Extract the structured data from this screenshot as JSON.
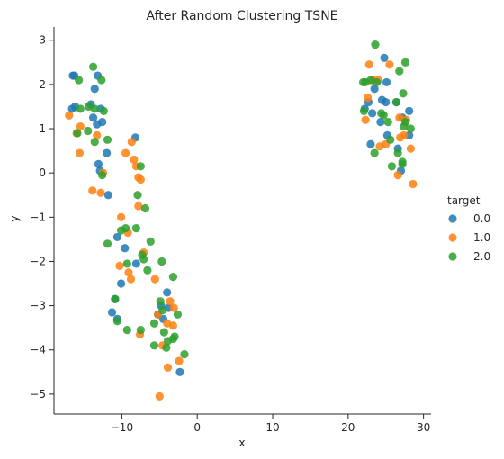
{
  "chart_data": {
    "type": "scatter",
    "title": "After Random Clustering TSNE",
    "xlabel": "x",
    "ylabel": "y",
    "xlim": [
      -19,
      31
    ],
    "ylim": [
      -5.45,
      3.3
    ],
    "xticks": [
      -10,
      0,
      10,
      20,
      30
    ],
    "yticks": [
      -5,
      -4,
      -3,
      -2,
      -1,
      0,
      1,
      2,
      3
    ],
    "xtick_labels": [
      "−10",
      "0",
      "10",
      "20",
      "30"
    ],
    "ytick_labels": [
      "−5",
      "−4",
      "−3",
      "−2",
      "−1",
      "0",
      "1",
      "2",
      "3"
    ],
    "grid": false,
    "legend": {
      "title": "target",
      "placement": "right"
    },
    "series": [
      {
        "name": "0.0",
        "color": "#1f77b4",
        "points": [
          [
            -16.5,
            2.2
          ],
          [
            -16.3,
            2.2
          ],
          [
            -16.6,
            1.45
          ],
          [
            -16.2,
            1.5
          ],
          [
            -14.1,
            1.55
          ],
          [
            -13.6,
            1.9
          ],
          [
            -13.2,
            2.2
          ],
          [
            -13.8,
            1.25
          ],
          [
            -12.8,
            1.45
          ],
          [
            -12.6,
            1.15
          ],
          [
            -13.3,
            1.1
          ],
          [
            -13.1,
            0.2
          ],
          [
            -12.9,
            0.05
          ],
          [
            -12.0,
            0.45
          ],
          [
            -11.8,
            -0.5
          ],
          [
            -8.2,
            0.8
          ],
          [
            -10.6,
            -1.45
          ],
          [
            -9.6,
            -1.7
          ],
          [
            -10.1,
            -2.5
          ],
          [
            -8.1,
            -2.05
          ],
          [
            -10.9,
            -2.85
          ],
          [
            -11.3,
            -3.15
          ],
          [
            -10.6,
            -3.3
          ],
          [
            -4.8,
            -3.0
          ],
          [
            -4.0,
            -2.7
          ],
          [
            -3.8,
            -3.05
          ],
          [
            -4.5,
            -3.3
          ],
          [
            -5.2,
            -3.2
          ],
          [
            -2.3,
            -4.5
          ],
          [
            24.8,
            2.6
          ],
          [
            25.1,
            2.05
          ],
          [
            23.5,
            1.9
          ],
          [
            22.7,
            1.6
          ],
          [
            24.5,
            1.65
          ],
          [
            25.0,
            1.6
          ],
          [
            23.2,
            1.35
          ],
          [
            22.2,
            1.45
          ],
          [
            24.3,
            1.15
          ],
          [
            26.4,
            1.6
          ],
          [
            27.2,
            1.25
          ],
          [
            28.1,
            1.4
          ],
          [
            25.2,
            0.85
          ],
          [
            28.1,
            0.85
          ],
          [
            23.0,
            0.65
          ],
          [
            26.6,
            0.55
          ],
          [
            27.0,
            0.05
          ]
        ]
      },
      {
        "name": "1.0",
        "color": "#ff7f0e",
        "points": [
          [
            -17.0,
            1.3
          ],
          [
            -16.0,
            0.9
          ],
          [
            -15.5,
            1.05
          ],
          [
            -15.6,
            0.45
          ],
          [
            -13.3,
            0.85
          ],
          [
            -13.9,
            -0.4
          ],
          [
            -12.8,
            -0.45
          ],
          [
            -12.5,
            0.0
          ],
          [
            -8.7,
            0.7
          ],
          [
            -9.5,
            0.45
          ],
          [
            -8.4,
            0.3
          ],
          [
            -8.1,
            0.15
          ],
          [
            -7.8,
            -0.1
          ],
          [
            -7.5,
            -0.15
          ],
          [
            -7.8,
            -0.75
          ],
          [
            -10.1,
            -1.0
          ],
          [
            -9.2,
            -1.35
          ],
          [
            -7.1,
            -1.8
          ],
          [
            -10.3,
            -2.1
          ],
          [
            -9.1,
            -2.25
          ],
          [
            -8.8,
            -2.4
          ],
          [
            -5.6,
            -2.4
          ],
          [
            -3.1,
            -3.05
          ],
          [
            -3.6,
            -2.9
          ],
          [
            -4.0,
            -3.4
          ],
          [
            -5.2,
            -3.2
          ],
          [
            -3.2,
            -3.45
          ],
          [
            -7.6,
            -3.65
          ],
          [
            -4.6,
            -3.9
          ],
          [
            -3.9,
            -4.4
          ],
          [
            -2.4,
            -4.25
          ],
          [
            -5.0,
            -5.05
          ],
          [
            22.8,
            2.45
          ],
          [
            25.5,
            2.45
          ],
          [
            24.0,
            2.1
          ],
          [
            23.3,
            2.1
          ],
          [
            22.6,
            1.7
          ],
          [
            22.3,
            1.2
          ],
          [
            24.2,
            0.6
          ],
          [
            25.0,
            0.65
          ],
          [
            26.8,
            1.25
          ],
          [
            27.7,
            1.2
          ],
          [
            26.9,
            0.8
          ],
          [
            27.4,
            0.85
          ],
          [
            28.3,
            0.55
          ],
          [
            26.6,
            -0.05
          ],
          [
            28.6,
            -0.25
          ]
        ]
      },
      {
        "name": "2.0",
        "color": "#2ca02c",
        "points": [
          [
            -15.7,
            2.1
          ],
          [
            -13.8,
            2.4
          ],
          [
            -12.7,
            2.1
          ],
          [
            -14.4,
            1.5
          ],
          [
            -13.6,
            1.45
          ],
          [
            -12.4,
            1.4
          ],
          [
            -15.5,
            1.45
          ],
          [
            -15.9,
            0.9
          ],
          [
            -14.5,
            0.95
          ],
          [
            -13.6,
            0.7
          ],
          [
            -11.9,
            0.75
          ],
          [
            -12.6,
            -0.05
          ],
          [
            -7.5,
            0.15
          ],
          [
            -7.9,
            -0.5
          ],
          [
            -6.9,
            -0.8
          ],
          [
            -8.1,
            -1.25
          ],
          [
            -9.5,
            -1.25
          ],
          [
            -10.1,
            -1.3
          ],
          [
            -11.9,
            -1.6
          ],
          [
            -6.2,
            -1.55
          ],
          [
            -7.3,
            -1.85
          ],
          [
            -7.1,
            -1.95
          ],
          [
            -6.6,
            -2.2
          ],
          [
            -9.3,
            -2.05
          ],
          [
            -4.7,
            -2.0
          ],
          [
            -3.2,
            -2.35
          ],
          [
            -4.9,
            -2.9
          ],
          [
            -4.6,
            -3.1
          ],
          [
            -10.9,
            -2.85
          ],
          [
            -10.6,
            -3.35
          ],
          [
            -9.3,
            -3.55
          ],
          [
            -7.5,
            -3.55
          ],
          [
            -5.7,
            -3.4
          ],
          [
            -4.4,
            -3.6
          ],
          [
            -2.6,
            -3.2
          ],
          [
            -3.0,
            -3.7
          ],
          [
            -3.2,
            -3.75
          ],
          [
            -3.9,
            -3.8
          ],
          [
            -4.1,
            -3.95
          ],
          [
            -5.7,
            -3.9
          ],
          [
            -1.7,
            -4.1
          ],
          [
            23.6,
            2.9
          ],
          [
            26.8,
            2.3
          ],
          [
            27.6,
            2.5
          ],
          [
            22.0,
            2.05
          ],
          [
            22.3,
            2.05
          ],
          [
            23.0,
            2.1
          ],
          [
            23.8,
            2.05
          ],
          [
            24.4,
            1.35
          ],
          [
            24.7,
            1.3
          ],
          [
            25.3,
            1.15
          ],
          [
            22.1,
            1.4
          ],
          [
            27.3,
            1.8
          ],
          [
            26.4,
            1.6
          ],
          [
            27.6,
            1.15
          ],
          [
            27.4,
            1.05
          ],
          [
            28.3,
            1.0
          ],
          [
            23.5,
            0.45
          ],
          [
            25.6,
            0.75
          ],
          [
            26.6,
            0.45
          ],
          [
            25.8,
            0.15
          ],
          [
            27.2,
            0.25
          ],
          [
            27.2,
            0.2
          ]
        ]
      }
    ]
  }
}
